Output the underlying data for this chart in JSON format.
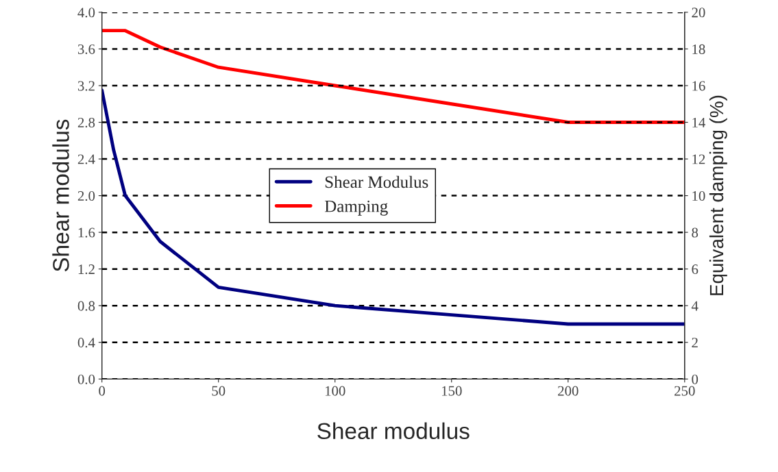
{
  "chart_data": {
    "type": "line",
    "xlabel": "Shear modulus",
    "ylabel": "Shear modulus",
    "y2label": "Equivalent damping (%)",
    "xlim": [
      0,
      250
    ],
    "xticks": [
      0,
      50,
      100,
      150,
      200,
      250
    ],
    "ylim": [
      0,
      4
    ],
    "yticks": [
      {
        "value": 0,
        "label": "0.0"
      },
      0.4,
      0.8,
      1.2,
      1.6,
      {
        "value": 2,
        "label": "2.0"
      },
      2.4,
      2.8,
      3.2,
      3.6,
      {
        "value": 4,
        "label": "4.0"
      }
    ],
    "y2lim": [
      0,
      20
    ],
    "y2ticks": [
      0,
      2,
      4,
      6,
      8,
      10,
      12,
      14,
      16,
      18,
      20
    ],
    "grid": "y",
    "legend": "center",
    "line_style": "solid",
    "series": [
      {
        "name": "Shear Modulus",
        "color": "#000080",
        "x": [
          0,
          5,
          10,
          25,
          40,
          50,
          100,
          150,
          200,
          250
        ],
        "values": [
          3.15,
          2.5,
          2.0,
          1.5,
          1.2,
          1.0,
          0.8,
          0.7,
          0.6,
          0.6
        ]
      },
      {
        "name": "Damping",
        "color": "#ff0000",
        "axis": "y2",
        "x": [
          0,
          10,
          25,
          50,
          100,
          150,
          200,
          250
        ],
        "values": [
          19,
          19,
          18.1,
          17,
          16,
          15,
          14,
          14
        ]
      }
    ]
  }
}
